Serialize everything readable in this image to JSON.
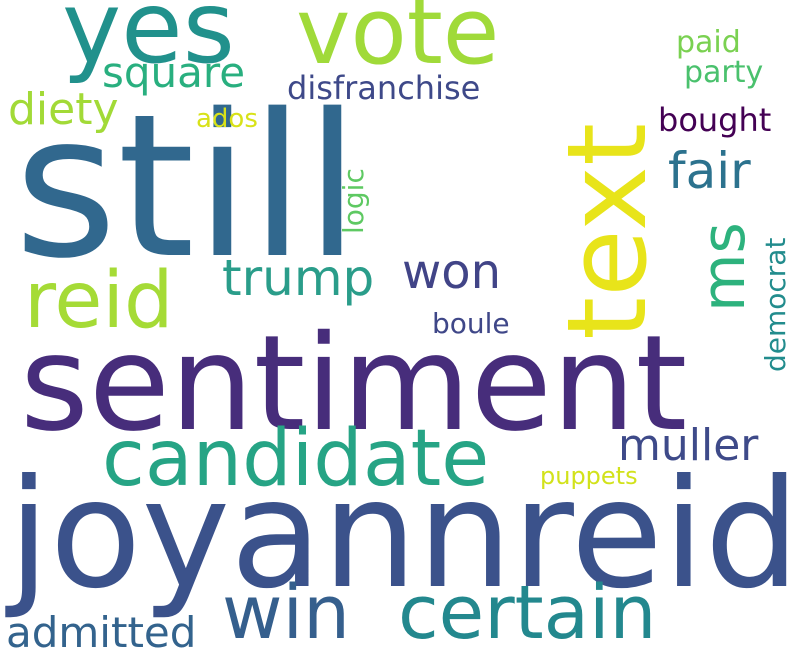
{
  "words": {
    "still": {
      "text": "still",
      "color": "#31688e"
    },
    "sentiment": {
      "text": "sentiment",
      "color": "#472d7b"
    },
    "joyannreid": {
      "text": "joyannreid",
      "color": "#3b528b"
    },
    "text": {
      "text": "text",
      "color": "#e8e41a"
    },
    "yes": {
      "text": "yes",
      "color": "#21918c"
    },
    "vote": {
      "text": "vote",
      "color": "#a0da39"
    },
    "candidate": {
      "text": "candidate",
      "color": "#26a485"
    },
    "certain": {
      "text": "certain",
      "color": "#23888e"
    },
    "win": {
      "text": "win",
      "color": "#355f8d"
    },
    "reid": {
      "text": "reid",
      "color": "#a5db36"
    },
    "trump": {
      "text": "trump",
      "color": "#2a9d8a"
    },
    "won": {
      "text": "won",
      "color": "#414487"
    },
    "ms": {
      "text": "ms",
      "color": "#2db27d"
    },
    "fair": {
      "text": "fair",
      "color": "#2c728e"
    },
    "muller": {
      "text": "muller",
      "color": "#3e4a89"
    },
    "square": {
      "text": "square",
      "color": "#29af7f"
    },
    "diety": {
      "text": "diety",
      "color": "#a2da37"
    },
    "disfranchise": {
      "text": "disfranchise",
      "color": "#3e4989"
    },
    "paid": {
      "text": "paid",
      "color": "#7ad151"
    },
    "party": {
      "text": "party",
      "color": "#4ac16d"
    },
    "bought": {
      "text": "bought",
      "color": "#440154"
    },
    "ados": {
      "text": "ados",
      "color": "#d8e219"
    },
    "logic": {
      "text": "logic",
      "color": "#5ec962"
    },
    "democrat": {
      "text": "democrat",
      "color": "#228c8d"
    },
    "boule": {
      "text": "boule",
      "color": "#3f4788"
    },
    "puppets": {
      "text": "puppets",
      "color": "#d2e21b"
    },
    "admitted": {
      "text": "admitted",
      "color": "#33638d"
    }
  }
}
